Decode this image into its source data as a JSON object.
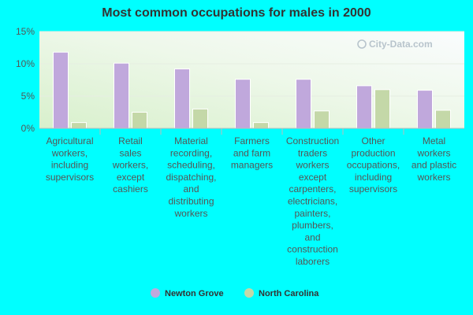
{
  "chart_data": {
    "type": "bar",
    "title": "Most common occupations for males in 2000",
    "xlabel": "",
    "ylabel": "",
    "ylim": [
      0,
      15
    ],
    "yticks": [
      0,
      5,
      10,
      15
    ],
    "ytick_labels": [
      "0%",
      "5%",
      "10%",
      "15%"
    ],
    "categories": [
      [
        "Agricultural",
        "workers,",
        "including",
        "supervisors"
      ],
      [
        "Retail",
        "sales",
        "workers,",
        "except",
        "cashiers"
      ],
      [
        "Material",
        "recording,",
        "scheduling,",
        "dispatching,",
        "and",
        "distributing",
        "workers"
      ],
      [
        "Farmers",
        "and farm",
        "managers"
      ],
      [
        "Construction",
        "traders",
        "workers",
        "except",
        "carpenters,",
        "electricians,",
        "painters,",
        "plumbers,",
        "and",
        "construction",
        "laborers"
      ],
      [
        "Other",
        "production",
        "occupations,",
        "including",
        "supervisors"
      ],
      [
        "Metal",
        "workers",
        "and plastic",
        "workers"
      ]
    ],
    "series": [
      {
        "name": "Newton Grove",
        "color": "#C0A8DC",
        "values": [
          11.8,
          10.1,
          9.2,
          7.6,
          7.6,
          6.6,
          5.9
        ]
      },
      {
        "name": "North Carolina",
        "color": "#C4D8A8",
        "values": [
          0.9,
          2.5,
          3.0,
          0.9,
          2.7,
          6.0,
          2.8
        ]
      }
    ],
    "grid": true,
    "legend_position": "bottom-center"
  },
  "watermark": {
    "text": "City-Data.com",
    "icon": "magnifier-icon"
  },
  "colors": {
    "background": "#00FFFF",
    "plot_bg_light": "#F4FBF0",
    "plot_bg_dark": "#E0F2D8"
  }
}
